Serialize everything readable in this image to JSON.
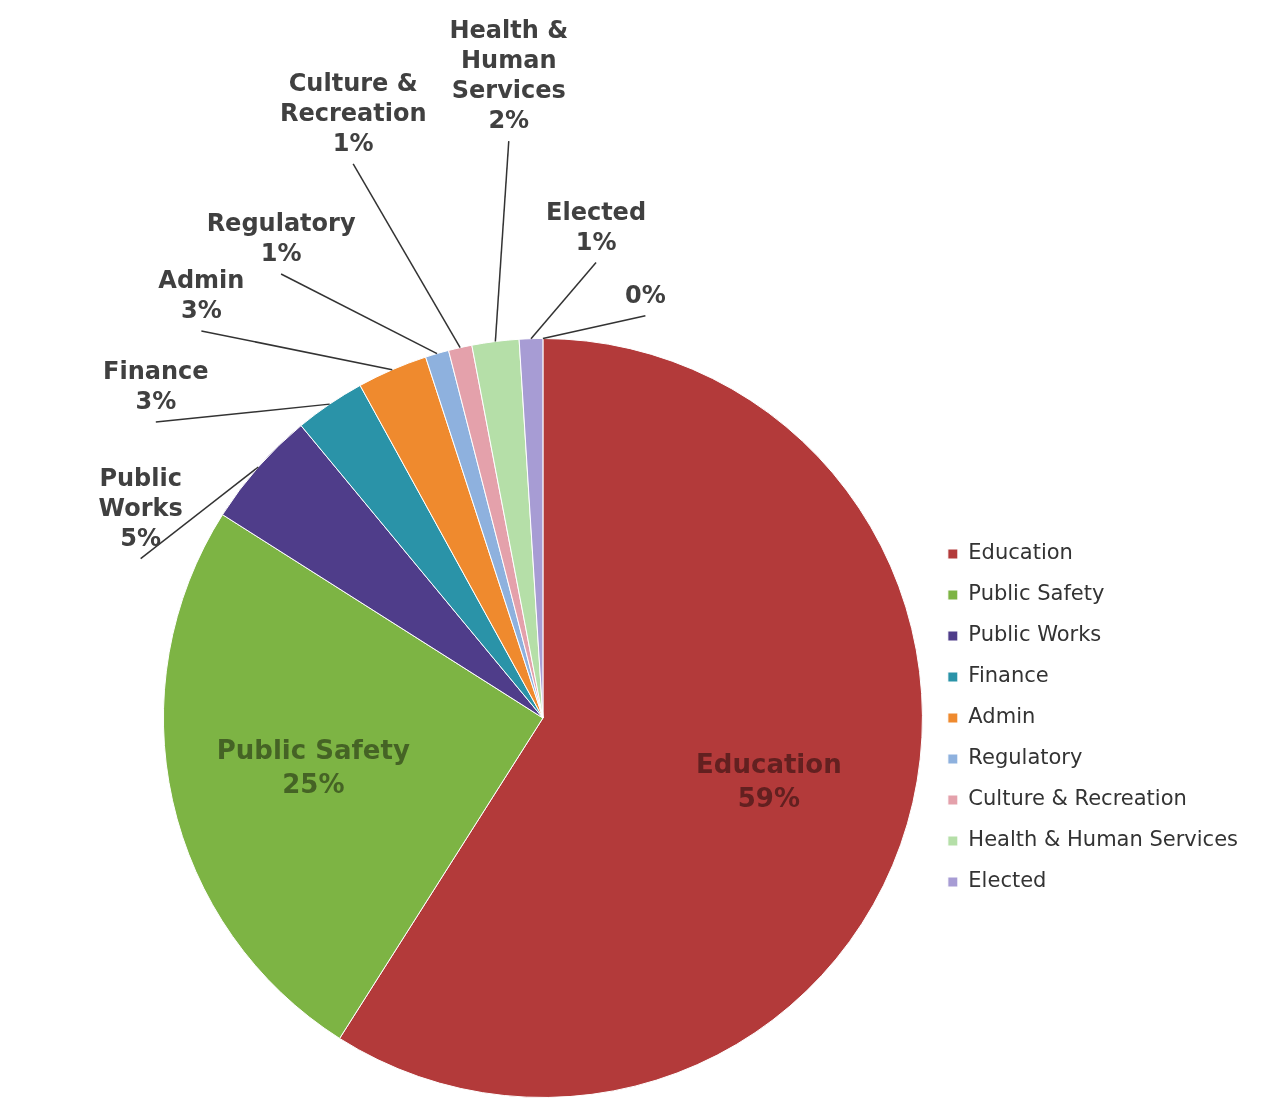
{
  "chart_data": {
    "type": "pie",
    "categories": [
      "Education",
      "Public Safety",
      "Public Works",
      "Finance",
      "Admin",
      "Regulatory",
      "Culture & Recreation",
      "Health & Human Services",
      "Elected",
      null
    ],
    "values": [
      59,
      25,
      5,
      3,
      3,
      1,
      1,
      2,
      1,
      0
    ],
    "colors": [
      "#b33a3a",
      "#7db444",
      "#4f3d8a",
      "#2a93a8",
      "#ef8a2e",
      "#8eb1de",
      "#e4a1ab",
      "#b5dfa8",
      "#a79cd4",
      "#6f8fcf"
    ],
    "value_labels": [
      "59%",
      "25%",
      "5%",
      "3%",
      "3%",
      "1%",
      "1%",
      "2%",
      "1%",
      "0%"
    ],
    "legend": "right"
  }
}
